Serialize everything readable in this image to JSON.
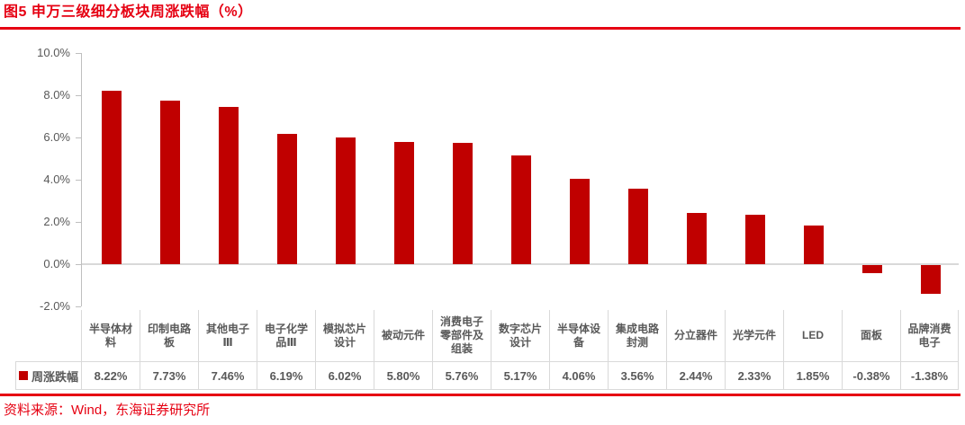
{
  "header": {
    "title": "图5  申万三级细分板块周涨跌幅（%）"
  },
  "footer": {
    "source": "资料来源：Wind，东海证券研究所"
  },
  "legend": {
    "label": "周涨跌幅"
  },
  "colors": {
    "accent_red": "#e60012",
    "bar": "#c00000",
    "axis_text": "#595959",
    "table_border": "#d9d9d9",
    "axis_line": "#bfbfbf"
  },
  "chart_data": {
    "type": "bar",
    "title": "图5  申万三级细分板块周涨跌幅（%）",
    "series_name": "周涨跌幅",
    "categories": [
      "半导体材料",
      "印制电路板",
      "其他电子Ⅲ",
      "电子化学品Ⅲ",
      "模拟芯片设计",
      "被动元件",
      "消费电子零部件及组装",
      "数字芯片设计",
      "半导体设备",
      "集成电路封测",
      "分立器件",
      "光学元件",
      "LED",
      "面板",
      "品牌消费电子"
    ],
    "values": [
      8.22,
      7.73,
      7.46,
      6.19,
      6.02,
      5.8,
      5.76,
      5.17,
      4.06,
      3.56,
      2.44,
      2.33,
      1.85,
      -0.38,
      -1.38
    ],
    "value_labels": [
      "8.22%",
      "7.73%",
      "7.46%",
      "6.19%",
      "6.02%",
      "5.80%",
      "5.76%",
      "5.17%",
      "4.06%",
      "3.56%",
      "2.44%",
      "2.33%",
      "1.85%",
      "-0.38%",
      "-1.38%"
    ],
    "xlabel": "",
    "ylabel": "",
    "ylim": [
      -2,
      10
    ],
    "yticks": [
      "10.0%",
      "8.0%",
      "6.0%",
      "4.0%",
      "2.0%",
      "0.0%",
      "-2.0%"
    ],
    "grid": false,
    "legend_position": "bottom-table"
  }
}
